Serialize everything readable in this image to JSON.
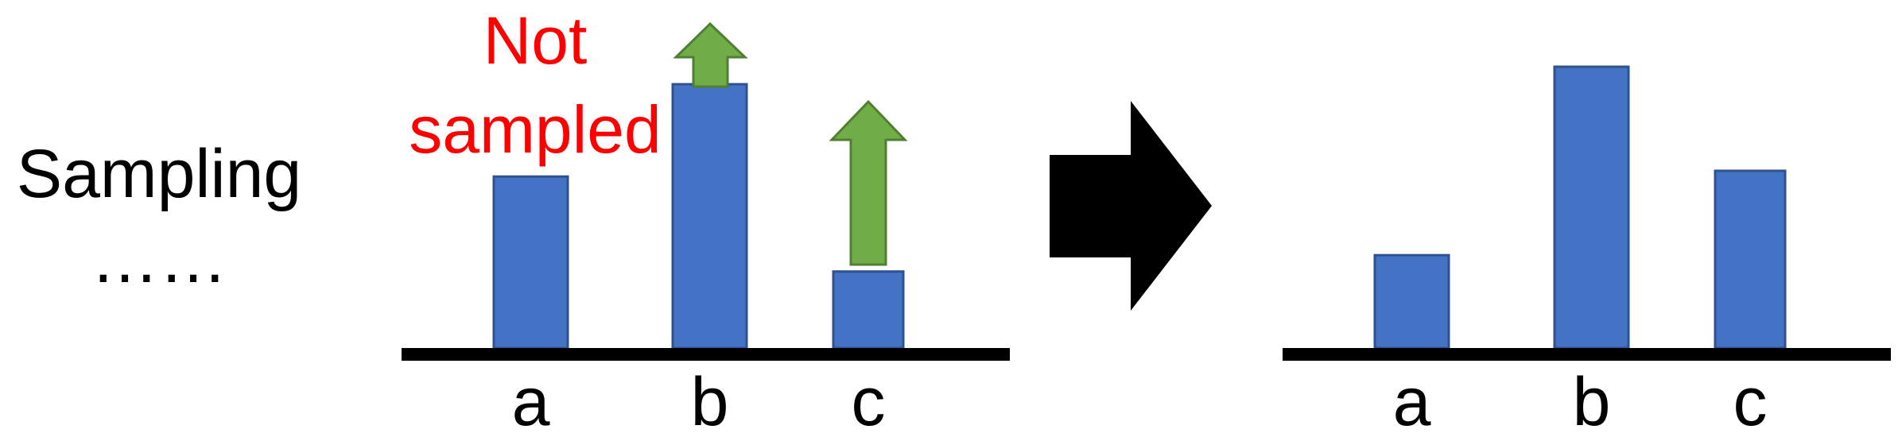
{
  "left_label": {
    "line1": "Sampling",
    "line2": "……"
  },
  "annotation": {
    "line1": "Not",
    "line2": "sampled",
    "color": "#ff0000"
  },
  "colors": {
    "bar_fill": "#4472c4",
    "bar_stroke": "#2f528f",
    "up_arrow_fill": "#70ad47",
    "up_arrow_stroke": "#507e32",
    "axis": "#000000",
    "transition_arrow": "#000000"
  },
  "before_panel": {
    "categories": [
      "a",
      "b",
      "c"
    ],
    "relative_heights": [
      0.65,
      1.0,
      0.29
    ],
    "increase_arrows": [
      "b",
      "c"
    ],
    "not_sampled": "a"
  },
  "after_panel": {
    "categories": [
      "a",
      "b",
      "c"
    ],
    "relative_heights": [
      0.33,
      1.0,
      0.63
    ]
  },
  "icons": {
    "transition": "right-arrow-icon",
    "increase": "up-arrow-icon"
  }
}
